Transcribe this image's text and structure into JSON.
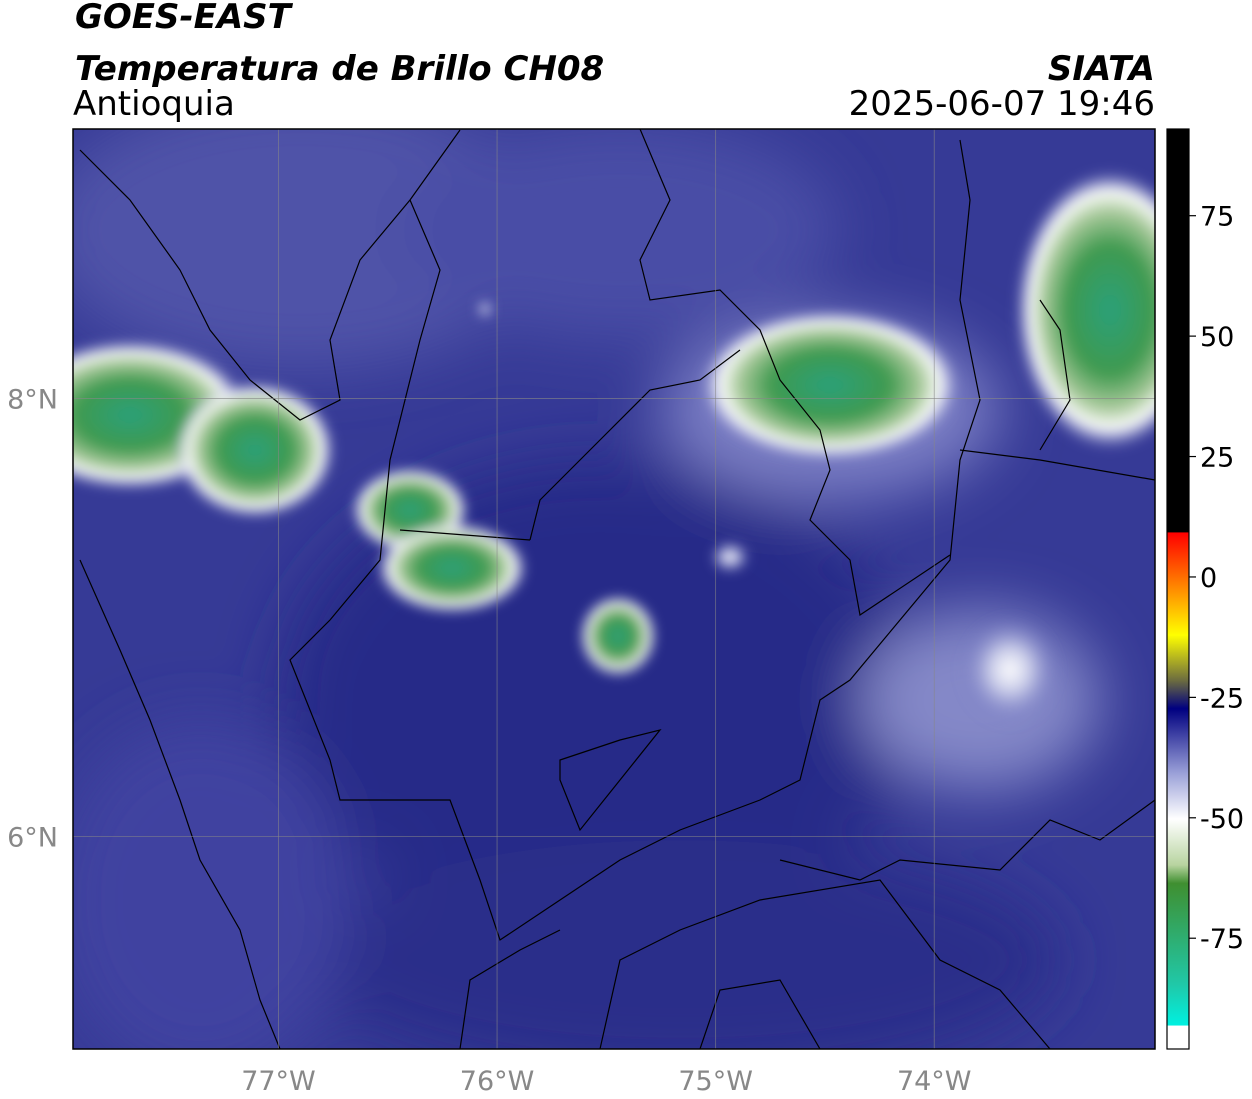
{
  "header": {
    "title": "GOES-EAST",
    "subtitle": "Temperatura de Brillo CH08",
    "region": "Antioquia",
    "source": "SIATA",
    "datetime": "2025-06-07 19:46"
  },
  "map": {
    "xlim": [
      -77.94,
      -72.99
    ],
    "ylim": [
      5.03,
      9.23
    ],
    "xticks": [
      {
        "value": -77,
        "label": "77°W"
      },
      {
        "value": -76,
        "label": "76°W"
      },
      {
        "value": -75,
        "label": "75°W"
      },
      {
        "value": -74,
        "label": "74°W"
      }
    ],
    "yticks": [
      {
        "value": 8,
        "label": "8°N"
      },
      {
        "value": 6,
        "label": "6°N"
      }
    ]
  },
  "colorbar": {
    "lim": [
      -98,
      93
    ],
    "ticks": [
      75,
      50,
      25,
      0,
      -25,
      -50,
      -75
    ]
  }
}
